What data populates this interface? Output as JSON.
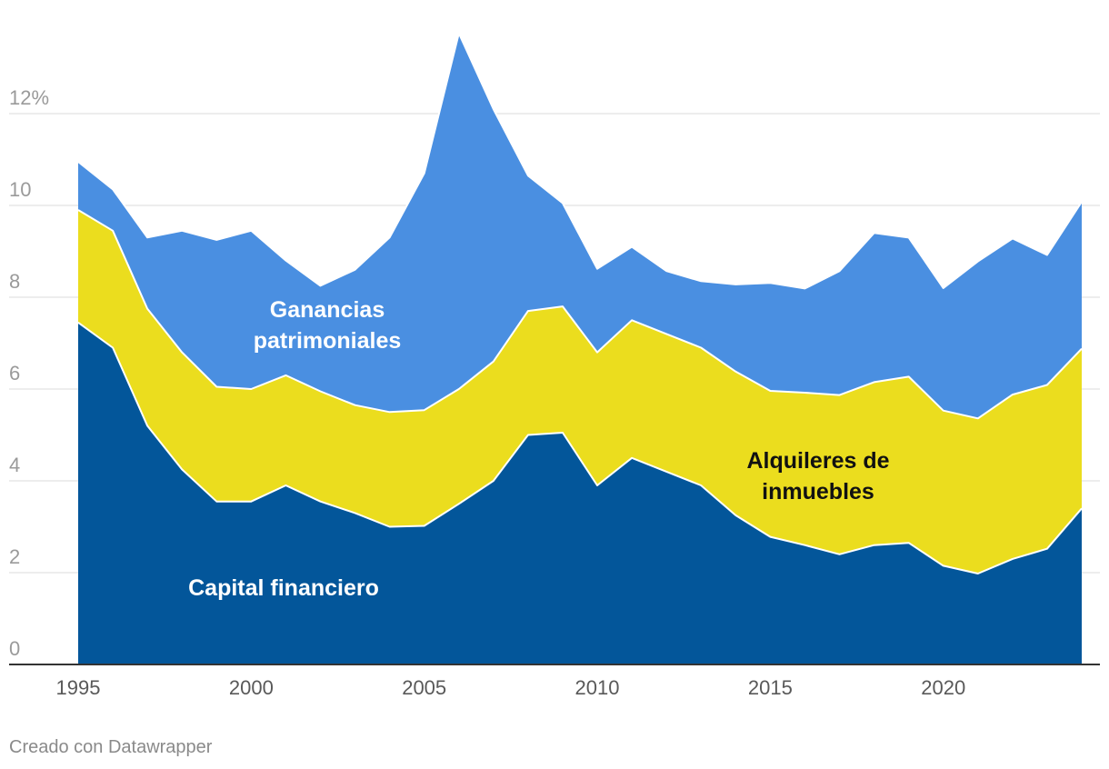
{
  "chart_data": {
    "type": "area",
    "stacked": true,
    "x": [
      1995,
      1996,
      1997,
      1998,
      1999,
      2000,
      2001,
      2002,
      2003,
      2004,
      2005,
      2006,
      2007,
      2008,
      2009,
      2010,
      2011,
      2012,
      2013,
      2014,
      2015,
      2016,
      2017,
      2018,
      2019,
      2020,
      2021,
      2022,
      2023,
      2024
    ],
    "series": [
      {
        "name": "Capital financiero",
        "color": "#03569a",
        "label_color": "#ffffff",
        "values": [
          7.45,
          6.9,
          5.2,
          4.25,
          3.55,
          3.55,
          3.9,
          3.55,
          3.3,
          3.0,
          3.02,
          3.5,
          4.0,
          5.0,
          5.05,
          3.9,
          4.5,
          4.2,
          3.9,
          3.25,
          2.78,
          2.6,
          2.4,
          2.6,
          2.65,
          2.15,
          1.98,
          2.3,
          2.52,
          3.4
        ]
      },
      {
        "name": "Alquileres de inmuebles",
        "color": "#ebdd1e",
        "label_color": "#111111",
        "values": [
          2.45,
          2.55,
          2.55,
          2.55,
          2.5,
          2.45,
          2.4,
          2.4,
          2.35,
          2.5,
          2.52,
          2.5,
          2.6,
          2.7,
          2.75,
          2.9,
          3.0,
          3.0,
          3.0,
          3.13,
          3.18,
          3.32,
          3.47,
          3.55,
          3.62,
          3.38,
          3.38,
          3.58,
          3.57,
          3.48
        ]
      },
      {
        "name": "Ganancias patrimoniales",
        "color": "#4a8fe1",
        "label_color": "#ffffff",
        "values": [
          1.05,
          0.9,
          1.55,
          2.65,
          3.2,
          3.45,
          2.5,
          2.3,
          2.95,
          3.8,
          5.16,
          7.75,
          5.5,
          2.95,
          2.25,
          1.82,
          1.6,
          1.37,
          1.45,
          1.9,
          2.35,
          2.27,
          2.7,
          3.25,
          3.03,
          2.67,
          3.42,
          3.4,
          2.83,
          3.2
        ]
      }
    ],
    "label_lines": {
      "Capital financiero": [
        "Capital financiero"
      ],
      "Alquileres de inmuebles": [
        "Alquileres de",
        "inmuebles"
      ],
      "Ganancias patrimoniales": [
        "Ganancias",
        "patrimoniales"
      ]
    },
    "x_ticks": [
      "1995",
      "2000",
      "2005",
      "2010",
      "2015",
      "2020"
    ],
    "y_ticks": [
      "0",
      "2",
      "4",
      "6",
      "8",
      "10",
      "12%"
    ],
    "ylim": [
      0,
      14
    ],
    "xlim": [
      1995,
      2024
    ],
    "grid": true
  },
  "credit": "Creado con Datawrapper"
}
